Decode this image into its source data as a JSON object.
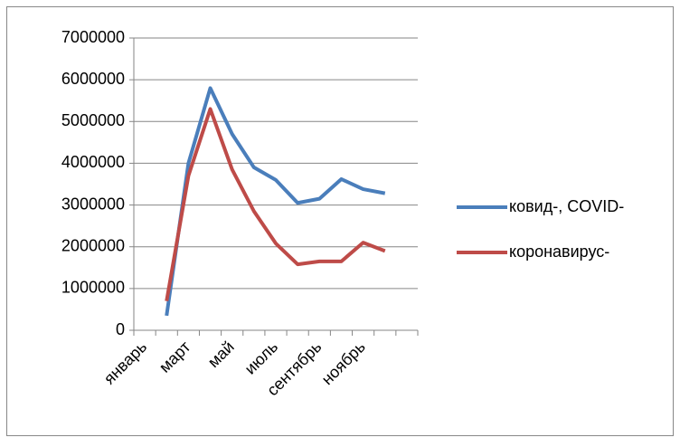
{
  "chart_data": {
    "type": "line",
    "categories": [
      "январь",
      null,
      "март",
      null,
      "май",
      null,
      "июль",
      null,
      "сентябрь",
      null,
      "ноябрь",
      null,
      null
    ],
    "series": [
      {
        "name": "ковид-, COVID-",
        "color": "#4a7ebb",
        "values": [
          null,
          350000,
          4000000,
          5800000,
          4700000,
          3900000,
          3600000,
          3050000,
          3150000,
          3620000,
          3380000,
          3280000,
          null
        ]
      },
      {
        "name": "коронавирус-",
        "color": "#be4b48",
        "values": [
          null,
          700000,
          3700000,
          5300000,
          3850000,
          2850000,
          2080000,
          1580000,
          1650000,
          1650000,
          2100000,
          1900000,
          null
        ]
      }
    ],
    "ylim": [
      0,
      7000000
    ],
    "yticks": [
      0,
      1000000,
      2000000,
      3000000,
      4000000,
      5000000,
      6000000,
      7000000
    ],
    "grid": true,
    "legend": "right"
  }
}
